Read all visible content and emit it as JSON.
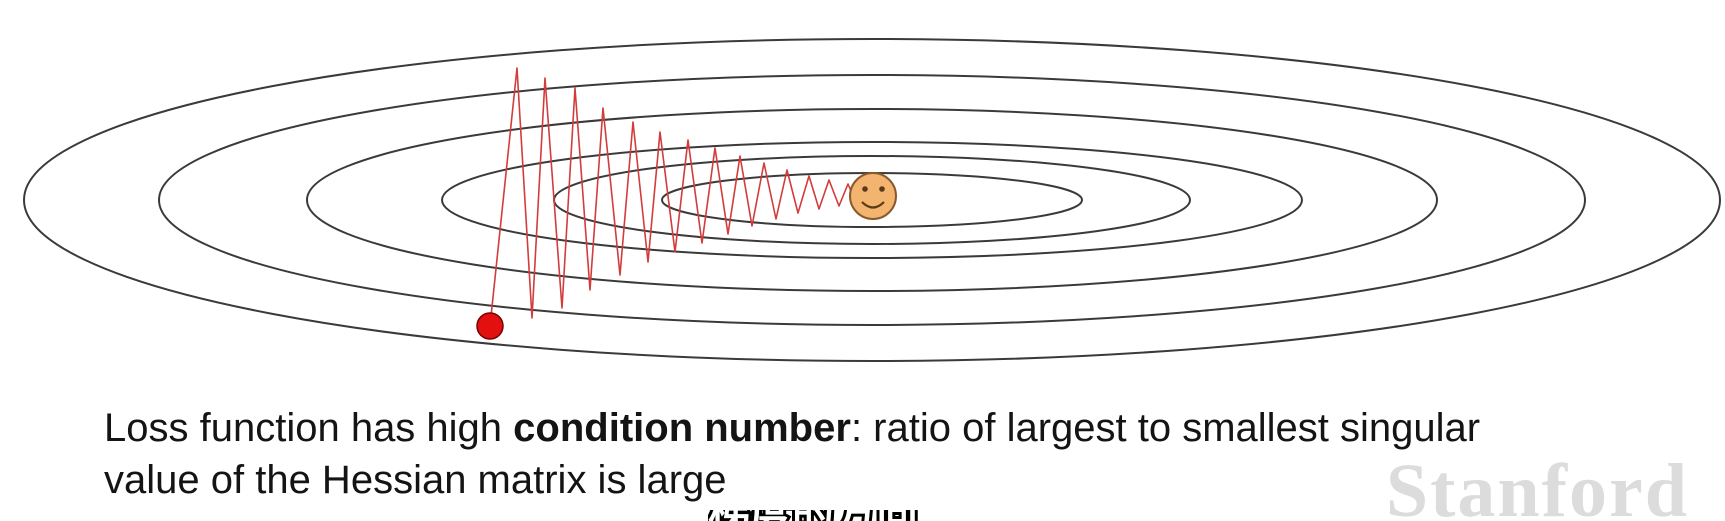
{
  "caption": {
    "part1": "Loss function has high ",
    "bold": "condition number",
    "part2": ": ratio of largest to smallest singular value of the Hessian matrix is large"
  },
  "watermark": "Stanford",
  "subtitle_fragment": "梯度的方向",
  "colors": {
    "contour": "#3a3a3a",
    "path": "#d23c3c",
    "start_point": "#e31010",
    "minimum_face": "#f2b46e"
  },
  "icons": {
    "start": "red-dot-icon",
    "minimum": "smiley-face-icon"
  }
}
